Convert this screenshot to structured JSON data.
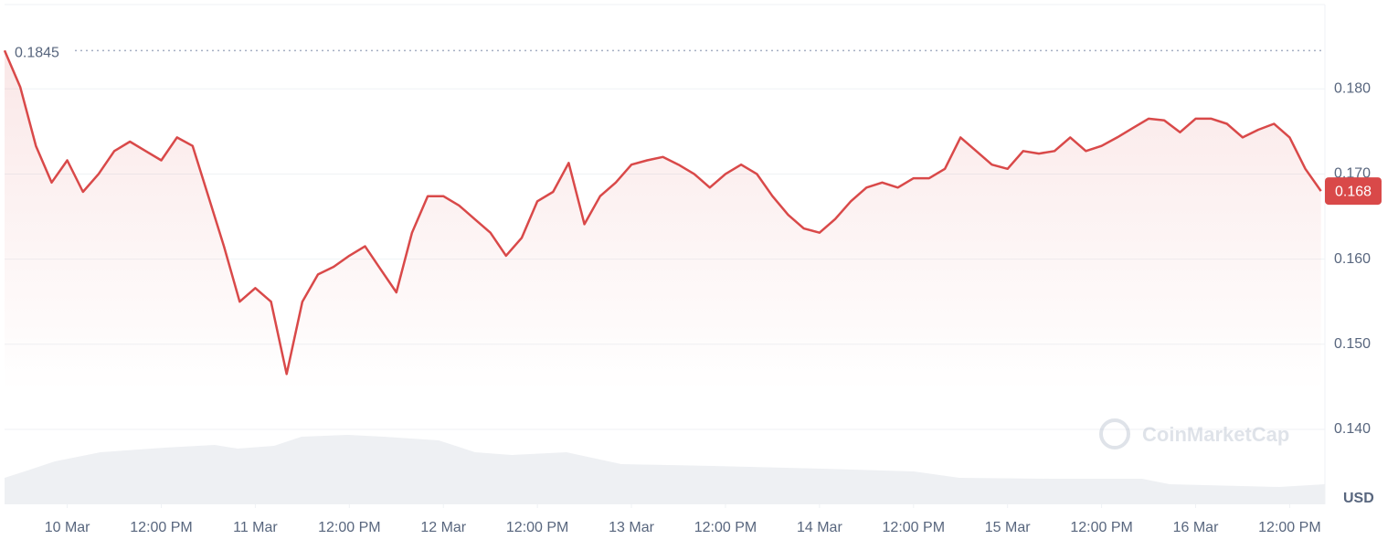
{
  "chart_data": {
    "type": "line",
    "currency": "USD",
    "watermark": "CoinMarketCap",
    "open_price": 0.1845,
    "last_price": 0.168,
    "color": "#d94949",
    "grid": true,
    "x": [
      -8,
      -6,
      -4,
      -2,
      0,
      2,
      4,
      6,
      8,
      10,
      12,
      14,
      16,
      18,
      20,
      22,
      24,
      26,
      28,
      30,
      32,
      34,
      36,
      38,
      40,
      42,
      44,
      46,
      48,
      50,
      52,
      54,
      56,
      58,
      60,
      62,
      64,
      66,
      68,
      70,
      72,
      74,
      76,
      78,
      80,
      82,
      84,
      86,
      88,
      90,
      92,
      94,
      96,
      98,
      100,
      102,
      104,
      106,
      108,
      110,
      112,
      114,
      116,
      118,
      120,
      122,
      124,
      126,
      128,
      130,
      132,
      134,
      136,
      138,
      140,
      142,
      144,
      146,
      148,
      150,
      152,
      154,
      156,
      158,
      160
    ],
    "values": [
      0.1845,
      0.1802,
      0.1733,
      0.169,
      0.1716,
      0.1679,
      0.17,
      0.1727,
      0.1738,
      0.1727,
      0.1716,
      0.1743,
      0.1733,
      0.1674,
      0.1615,
      0.155,
      0.1566,
      0.155,
      0.1465,
      0.155,
      0.1582,
      0.1591,
      0.1604,
      0.1615,
      0.1588,
      0.1561,
      0.1631,
      0.1674,
      0.1674,
      0.1663,
      0.1647,
      0.1631,
      0.1604,
      0.1625,
      0.1668,
      0.1679,
      0.1713,
      0.1641,
      0.1674,
      0.169,
      0.1711,
      0.1716,
      0.172,
      0.1711,
      0.17,
      0.1684,
      0.17,
      0.1711,
      0.17,
      0.1674,
      0.1652,
      0.1636,
      0.1631,
      0.1647,
      0.1668,
      0.1684,
      0.169,
      0.1684,
      0.1695,
      0.1695,
      0.1706,
      0.1743,
      0.1727,
      0.1711,
      0.1706,
      0.1727,
      0.1724,
      0.1727,
      0.1743,
      0.1727,
      0.1733,
      0.1743,
      0.1754,
      0.1765,
      0.1763,
      0.1749,
      0.1765,
      0.1765,
      0.1759,
      0.1743,
      0.1752,
      0.1759,
      0.1743,
      0.1706,
      0.168
    ],
    "xlim": [
      -8,
      160.5
    ],
    "xticks": [
      {
        "value": 0,
        "label": "10 Mar"
      },
      {
        "value": 12,
        "label": "12:00 PM"
      },
      {
        "value": 24,
        "label": "11 Mar"
      },
      {
        "value": 36,
        "label": "12:00 PM"
      },
      {
        "value": 48,
        "label": "12 Mar"
      },
      {
        "value": 60,
        "label": "12:00 PM"
      },
      {
        "value": 72,
        "label": "13 Mar"
      },
      {
        "value": 84,
        "label": "12:00 PM"
      },
      {
        "value": 96,
        "label": "14 Mar"
      },
      {
        "value": 108,
        "label": "12:00 PM"
      },
      {
        "value": 120,
        "label": "15 Mar"
      },
      {
        "value": 132,
        "label": "12:00 PM"
      },
      {
        "value": 144,
        "label": "16 Mar"
      },
      {
        "value": 156,
        "label": "12:00 PM"
      }
    ],
    "ylim": [
      0.1312,
      0.1899
    ],
    "yticks": [
      {
        "value": 0.14,
        "label": "0.140"
      },
      {
        "value": 0.15,
        "label": "0.150"
      },
      {
        "value": 0.16,
        "label": "0.160"
      },
      {
        "value": 0.17,
        "label": "0.170"
      },
      {
        "value": 0.18,
        "label": "0.180"
      }
    ]
  }
}
